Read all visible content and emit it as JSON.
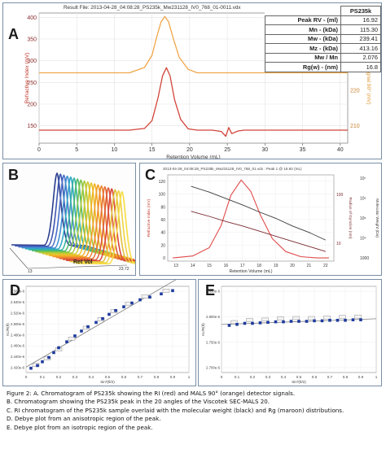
{
  "panel_a": {
    "letter": "A",
    "result_file": "Result File: 2013-04-28_04:08:28_PS235k_Mw231128_IV0_768_01-0011.vdx",
    "table_header": "PS235k",
    "table_rows": [
      {
        "label": "Peak RV - (ml)",
        "value": "16.92"
      },
      {
        "label": "Mn - (kDa)",
        "value": "115.30"
      },
      {
        "label": "Mw - (kDa)",
        "value": "239.41"
      },
      {
        "label": "Mz - (kDa)",
        "value": "413.16"
      },
      {
        "label": "Mw / Mn",
        "value": "2.076"
      },
      {
        "label": "Rg(w) - (nm)",
        "value": "16.8"
      }
    ]
  },
  "panel_b": {
    "letter": "B",
    "axis_label": "Ret Vol",
    "tick_left": "13",
    "tick_right": "23.72"
  },
  "panel_c": {
    "letter": "C",
    "header": "2013-04-28_04:08:28_PS235k_Mw231128_IV0_768_01.vdx : Peak 1 @ 16.92 (mL)"
  },
  "panel_d": {
    "letter": "D"
  },
  "panel_e": {
    "letter": "E"
  },
  "caption": {
    "line1": "Figure 2: A. Chromatogram of PS235k showing the RI (red) and MALS 90° (orange) detector signals.",
    "line2": "B. Chromatogram showing the PS235k peak in the 20 angles of the Viscotek SEC-MALS 20.",
    "line3": "C. RI chromatogram of the PS235k sample overlaid with the molecular weight (black) and Rg (maroon) distributions.",
    "line4": "D. Debye plot from an anisotropic region of the peak.",
    "line5": "E. Debye plot from an isotropic region of the peak."
  },
  "chart_data": [
    {
      "id": "A",
      "type": "line",
      "title": "Result File: 2013-04-28_04:08:28_PS235k_Mw231128_IV0_768_01-0011.vdx",
      "xlabel": "Retention Volume (mL)",
      "ylabel": "Refractive Index (mV)",
      "y2label": "MALS Signal 90° (mV)",
      "xlim": [
        0,
        41
      ],
      "ylim": [
        110,
        410
      ],
      "y2lim": [
        205,
        242
      ],
      "xticks": [
        0,
        5,
        10,
        15,
        20,
        25,
        30,
        35,
        40
      ],
      "yticks": [
        150,
        200,
        250,
        300,
        350,
        400
      ],
      "y2ticks": [
        210,
        220,
        230,
        240
      ],
      "series": [
        {
          "color": "#d2453a",
          "axis": "y",
          "x": [
            0,
            12,
            14,
            15,
            15.8,
            16.4,
            16.92,
            17.4,
            18,
            18.8,
            19.8,
            21,
            23,
            24.2,
            24.8,
            25.2,
            25.6,
            26.4,
            27.2,
            30,
            41
          ],
          "y": [
            140,
            140,
            144,
            162,
            215,
            265,
            284,
            265,
            210,
            165,
            143,
            140,
            140,
            137,
            126,
            146,
            132,
            138,
            140,
            140,
            140
          ]
        },
        {
          "color": "#f0a64a",
          "axis": "y2",
          "x": [
            0,
            12,
            14,
            15,
            15.6,
            16.2,
            16.7,
            17.2,
            17.8,
            18.6,
            19.8,
            21,
            41
          ],
          "y": [
            225,
            225,
            226.5,
            230,
            235,
            239.5,
            241,
            239.5,
            235,
            229.5,
            226,
            225,
            225
          ]
        }
      ]
    },
    {
      "id": "B",
      "type": "line",
      "xlabel": "Ret Vol",
      "xticks": [
        "13",
        "23.72"
      ]
    },
    {
      "id": "C",
      "type": "line",
      "title": "2013-04-28_04:08:28_PS235k_Mw231128_IV0_768_01.vdx : Peak 1 @ 16.92 (mL)",
      "xlabel": "Retention Volume (mL)",
      "ylabel": "Refractive Index (mV)",
      "y2label": "Radius of Gyration (nm)",
      "y3label": "Molecular Weight (Da)",
      "xlim": [
        12.5,
        22.5
      ],
      "ylim": [
        -5,
        130
      ],
      "xticks": [
        13,
        14,
        15,
        16,
        17,
        18,
        19,
        20,
        21,
        22
      ],
      "yticks": [
        0,
        20,
        40,
        60,
        80,
        100,
        120
      ],
      "y2ticks": [
        "10",
        "100"
      ],
      "y3ticks": [
        "1000",
        "10⁴",
        "10⁵",
        "10⁶",
        "10⁷"
      ],
      "series": [
        {
          "color": "#e04b4b",
          "x": [
            12.8,
            14,
            15,
            15.7,
            16.3,
            16.92,
            17.5,
            18.1,
            18.8,
            19.6,
            20.5,
            21.5,
            22.2
          ],
          "y": [
            0,
            3,
            16,
            50,
            98,
            122,
            104,
            66,
            30,
            10,
            2,
            0,
            0
          ]
        },
        {
          "color": "#3a3a3a",
          "x": [
            13.9,
            15,
            16,
            17,
            18,
            19,
            20,
            21,
            22
          ],
          "y": [
            112,
            103,
            93,
            83,
            72,
            62,
            50,
            40,
            28
          ]
        },
        {
          "color": "#7a2a30",
          "x": [
            13.9,
            15,
            16,
            17,
            18,
            19,
            20,
            21,
            22
          ],
          "y": [
            73,
            65,
            57,
            50,
            42,
            34,
            26,
            18,
            10
          ]
        }
      ]
    },
    {
      "id": "D",
      "type": "scatter",
      "xlabel": "Sin²(θ/2)",
      "ylabel": "Kc/R(θ)",
      "xlim": [
        0,
        1
      ],
      "ylim": [
        2.41e-06,
        2.57e-06
      ],
      "xticks": [
        0,
        0.1,
        0.2,
        0.3,
        0.4,
        0.5,
        0.6,
        0.7,
        0.8,
        0.9,
        1.0
      ],
      "yticks": [
        "2.560e-6",
        "2.540e-6",
        "2.520e-6",
        "2.500e-6",
        "2.480e-6",
        "2.460e-6",
        "2.440e-6",
        "2.420e-6"
      ],
      "x": [
        0.03,
        0.07,
        0.1,
        0.14,
        0.17,
        0.2,
        0.25,
        0.3,
        0.34,
        0.38,
        0.43,
        0.47,
        0.51,
        0.55,
        0.6,
        0.65,
        0.7,
        0.76,
        0.83,
        0.9
      ],
      "y": [
        2.418e-06,
        2.423e-06,
        2.43e-06,
        2.438e-06,
        2.447e-06,
        2.456e-06,
        2.467e-06,
        2.478e-06,
        2.487e-06,
        2.495e-06,
        2.503e-06,
        2.51e-06,
        2.518e-06,
        2.525e-06,
        2.532e-06,
        2.539e-06,
        2.545e-06,
        2.55e-06,
        2.556e-06,
        2.562e-06
      ]
    },
    {
      "id": "E",
      "type": "scatter",
      "xlabel": "Sin²(θ/2)",
      "ylabel": "Kc/R(θ)",
      "xlim": [
        0,
        1
      ],
      "ylim": [
        2.7e-06,
        2.87e-06
      ],
      "xticks": [
        0,
        0.1,
        0.2,
        0.3,
        0.4,
        0.5,
        0.6,
        0.7,
        0.8,
        0.9,
        1.0
      ],
      "yticks": [
        "2.850e-6",
        "2.800e-6",
        "2.750e-6",
        "2.700e-6"
      ],
      "x": [
        0.05,
        0.1,
        0.15,
        0.2,
        0.25,
        0.3,
        0.35,
        0.4,
        0.45,
        0.5,
        0.55,
        0.6,
        0.65,
        0.7,
        0.75,
        0.8,
        0.85,
        0.9
      ],
      "y": [
        2.793e-06,
        2.795e-06,
        2.797e-06,
        2.797e-06,
        2.798e-06,
        2.799e-06,
        2.8e-06,
        2.8e-06,
        2.801e-06,
        2.801e-06,
        2.801e-06,
        2.802e-06,
        2.802e-06,
        2.803e-06,
        2.803e-06,
        2.803e-06,
        2.804e-06,
        2.804e-06
      ]
    }
  ]
}
